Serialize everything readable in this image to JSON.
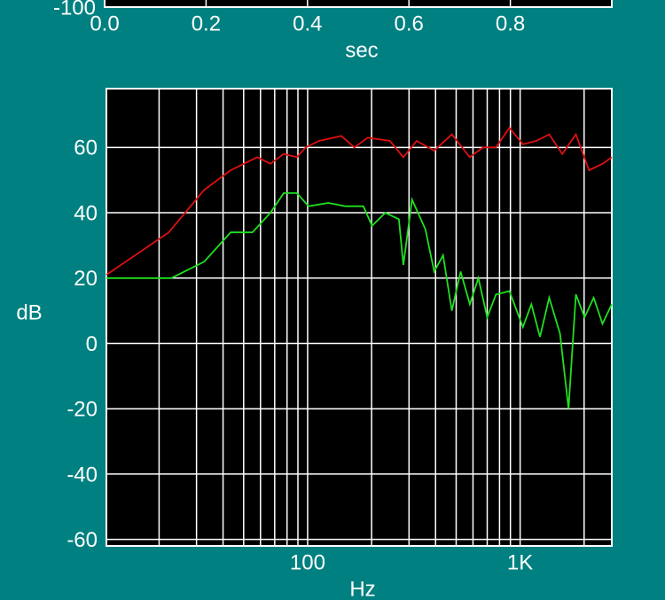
{
  "chart_data": [
    {
      "type": "line",
      "xlabel": "sec",
      "xlim": [
        0,
        1
      ],
      "xticks": [
        {
          "value": 0,
          "label": "0.0"
        },
        {
          "value": 0.2,
          "label": "0.2"
        },
        {
          "value": 0.4,
          "label": "0.4"
        },
        {
          "value": 0.6,
          "label": "0.6"
        },
        {
          "value": 0.8,
          "label": "0.8"
        }
      ],
      "ylim": [
        -100,
        100
      ],
      "yticks": [
        -100
      ],
      "grid": true
    },
    {
      "type": "line",
      "xlabel": "Hz",
      "ylabel": "dB",
      "xscale": "log",
      "xlim": [
        11.3,
        2700
      ],
      "xticks": [
        100,
        {
          "value": 1000,
          "label": "1K"
        }
      ],
      "x_minor_ticks": [
        20,
        30,
        40,
        50,
        60,
        70,
        80,
        90,
        200,
        300,
        400,
        500,
        600,
        700,
        800,
        900,
        2000
      ],
      "ylim": [
        -62,
        78
      ],
      "yticks": [
        -60,
        -40,
        -20,
        0,
        20,
        40,
        60
      ],
      "grid": true,
      "series": [
        {
          "color": "#e01010",
          "x": [
            11.3,
            22.2,
            32.6,
            43.4,
            57.9,
            66.8,
            77.2,
            89.1,
            98,
            113,
            144,
            166,
            192,
            244,
            282,
            326,
            394,
            477,
            580,
            668,
            770,
            890,
            1030,
            1190,
            1370,
            1580,
            1830,
            2110,
            2440,
            2700
          ],
          "values": [
            21,
            34,
            47,
            53,
            57,
            55,
            58,
            57,
            60,
            62,
            63.5,
            60,
            63,
            62,
            57,
            62,
            59,
            64,
            57,
            60,
            60,
            66,
            61,
            62,
            64,
            58,
            64,
            53,
            55,
            57
          ]
        },
        {
          "color": "#20e020",
          "x": [
            11.3,
            22.8,
            32.6,
            43.4,
            55,
            66.8,
            77.2,
            89,
            101,
            125,
            151,
            183,
            201,
            232,
            269,
            282,
            310,
            358,
            394,
            434,
            477,
            525,
            580,
            636,
            700,
            770,
            890,
            1030,
            1130,
            1240,
            1370,
            1540,
            1690,
            1830,
            2010,
            2220,
            2440,
            2700
          ],
          "values": [
            20,
            20,
            25,
            34,
            34,
            40,
            46,
            46,
            42,
            43,
            42,
            42,
            36,
            40,
            38,
            24,
            44,
            35,
            22,
            27,
            10,
            22,
            12,
            20,
            8,
            15,
            16,
            5,
            12,
            2,
            14,
            3,
            -20,
            15,
            8,
            14,
            6,
            12
          ]
        }
      ]
    }
  ]
}
